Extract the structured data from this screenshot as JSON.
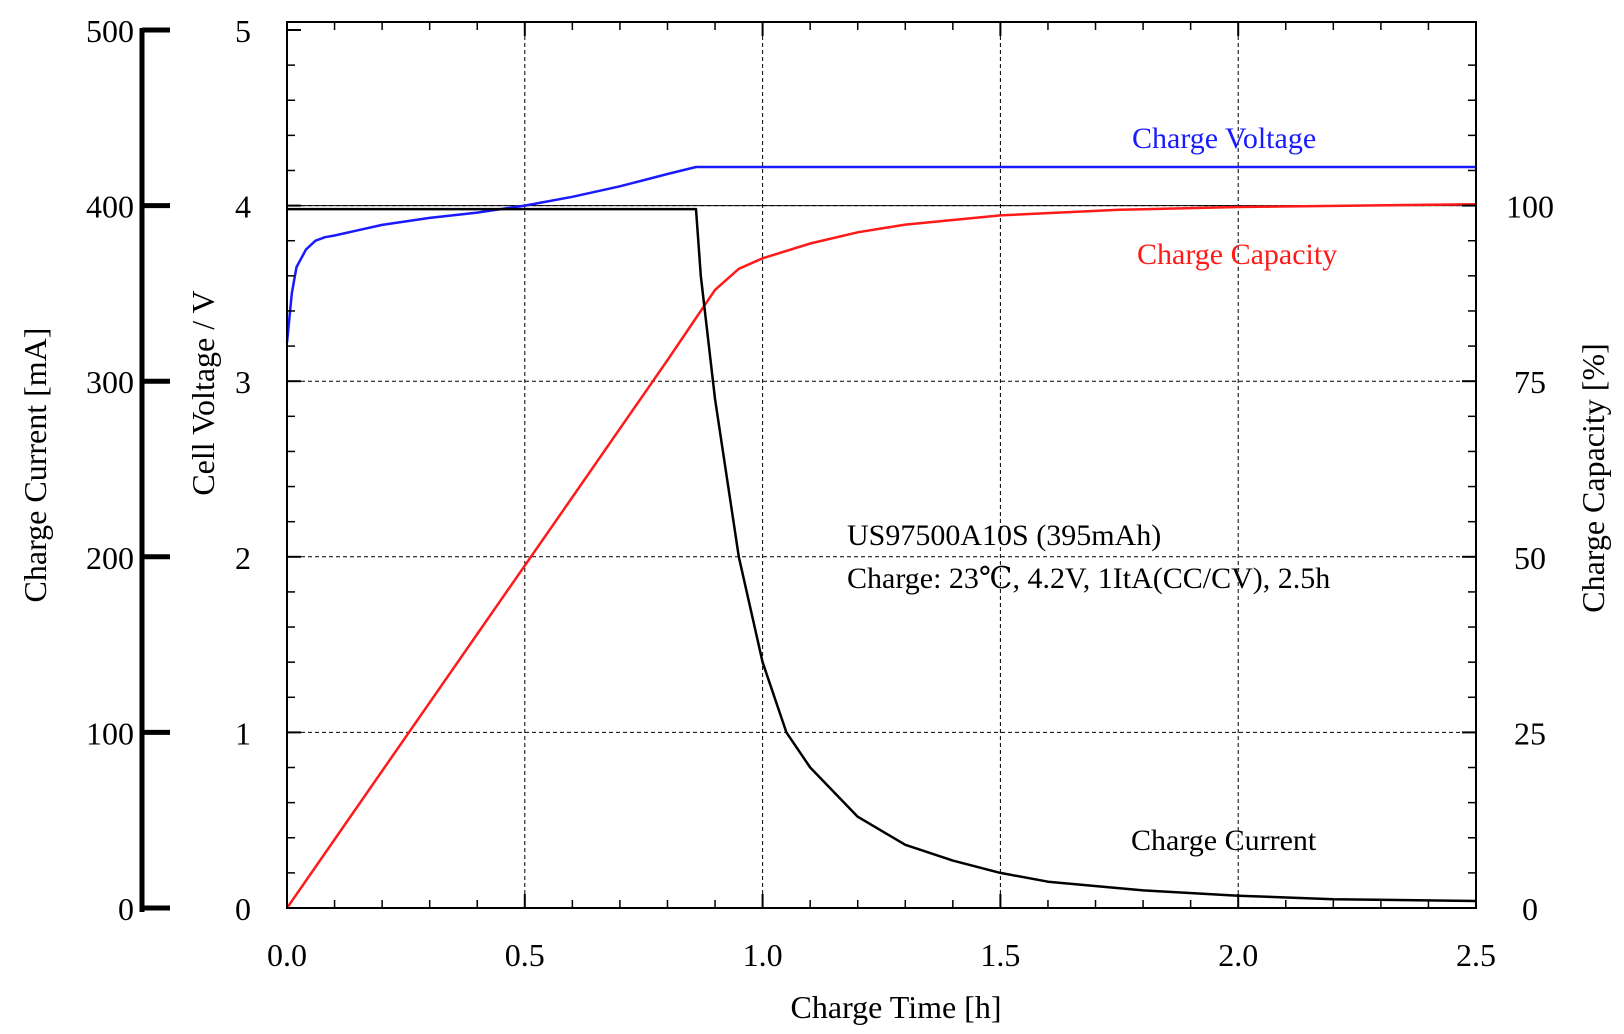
{
  "chart_data": {
    "type": "line",
    "xlabel": "Charge Time [h]",
    "ylabel_left_outer": "Charge Current [mA]",
    "ylabel_left_inner": "Cell Voltage / V",
    "ylabel_right": "Charge Capacity [%]",
    "xlim": [
      0,
      2.5
    ],
    "ylim_voltage": [
      0,
      5
    ],
    "ylim_current": [
      0,
      500
    ],
    "ylim_capacity": [
      0,
      125
    ],
    "x_ticks": [
      "0.0",
      "0.5",
      "1.0",
      "1.5",
      "2.0",
      "2.5"
    ],
    "voltage_ticks": [
      "0",
      "1",
      "2",
      "3",
      "4",
      "5"
    ],
    "current_ticks": [
      "0",
      "100",
      "200",
      "300",
      "400",
      "500"
    ],
    "capacity_ticks": [
      "0",
      "25",
      "50",
      "75",
      "100"
    ],
    "grid": true,
    "annotation": {
      "line1": "US97500A10S (395mAh)",
      "line2": "Charge: 23℃, 4.2V, 1ItA(CC/CV), 2.5h"
    },
    "series": [
      {
        "name": "Charge Voltage",
        "axis": "voltage",
        "color": "#1a1aff",
        "x": [
          0.0,
          0.01,
          0.02,
          0.04,
          0.06,
          0.08,
          0.1,
          0.15,
          0.2,
          0.3,
          0.4,
          0.5,
          0.6,
          0.7,
          0.8,
          0.86,
          1.0,
          1.5,
          2.0,
          2.5
        ],
        "y": [
          3.22,
          3.5,
          3.65,
          3.75,
          3.8,
          3.82,
          3.83,
          3.86,
          3.89,
          3.93,
          3.96,
          4.0,
          4.05,
          4.11,
          4.18,
          4.22,
          4.22,
          4.22,
          4.22,
          4.22
        ]
      },
      {
        "name": "Charge Capacity",
        "axis": "capacity",
        "color": "#ff1a1a",
        "x": [
          0.0,
          0.2,
          0.4,
          0.6,
          0.8,
          0.86,
          0.9,
          0.95,
          1.0,
          1.1,
          1.2,
          1.3,
          1.5,
          1.75,
          2.0,
          2.25,
          2.5
        ],
        "y": [
          0,
          19.5,
          39,
          58.5,
          78,
          84,
          88,
          91,
          92.5,
          94.6,
          96.2,
          97.3,
          98.6,
          99.4,
          99.8,
          100,
          100.2
        ]
      },
      {
        "name": "Charge Current",
        "axis": "current",
        "color": "#000000",
        "x": [
          0.0,
          0.86,
          0.87,
          0.9,
          0.95,
          1.0,
          1.05,
          1.1,
          1.2,
          1.3,
          1.4,
          1.5,
          1.6,
          1.8,
          2.0,
          2.2,
          2.5
        ],
        "y": [
          398,
          398,
          360,
          290,
          200,
          140,
          100,
          80,
          52,
          36,
          27,
          20,
          15,
          10,
          7,
          5,
          4
        ]
      }
    ]
  }
}
